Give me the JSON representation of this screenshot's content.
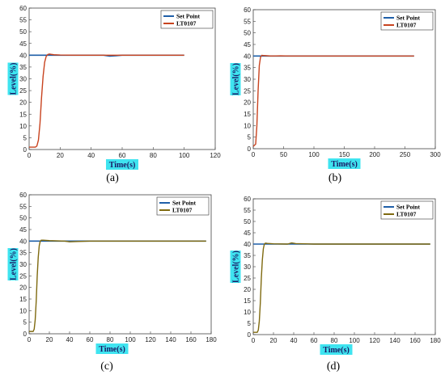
{
  "colors": {
    "setpoint": "#1f5fa8",
    "response_red": "#c8431f",
    "response_olive": "#7f6a10",
    "label_highlight": "#3fe4f0"
  },
  "chart_data": [
    {
      "type": "line",
      "caption": "(a)",
      "xlabel": "Time(s)",
      "ylabel": "Level(%)",
      "xlim": [
        0,
        120
      ],
      "ylim": [
        0,
        60
      ],
      "xticks": [
        0,
        20,
        40,
        60,
        80,
        100,
        120
      ],
      "yticks": [
        0,
        5,
        10,
        15,
        20,
        25,
        30,
        35,
        40,
        45,
        50,
        55,
        60
      ],
      "legend_position": "top-right",
      "series": [
        {
          "name": "Set Point",
          "color": "setpoint",
          "x": [
            0,
            48,
            52,
            56,
            60,
            100
          ],
          "y": [
            40,
            40,
            39.6,
            39.8,
            40,
            40
          ]
        },
        {
          "name": "LT0107",
          "color": "response_red",
          "x": [
            0,
            4,
            5,
            6,
            7,
            8,
            9,
            10,
            11,
            12,
            13,
            14,
            16,
            20,
            30,
            50,
            100
          ],
          "y": [
            1,
            1,
            1.5,
            4,
            11,
            22,
            31,
            37,
            39.5,
            40.3,
            40.5,
            40.4,
            40.2,
            40.1,
            40,
            40,
            40
          ]
        }
      ]
    },
    {
      "type": "line",
      "caption": "(b)",
      "xlabel": "Time(s)",
      "ylabel": "Level(%)",
      "xlim": [
        0,
        300
      ],
      "ylim": [
        0,
        60
      ],
      "xticks": [
        0,
        50,
        100,
        150,
        200,
        250,
        300
      ],
      "yticks": [
        0,
        5,
        10,
        15,
        20,
        25,
        30,
        35,
        40,
        45,
        50,
        55,
        60
      ],
      "legend_position": "top-right",
      "series": [
        {
          "name": "Set Point",
          "color": "setpoint",
          "x": [
            0,
            265
          ],
          "y": [
            40,
            40
          ]
        },
        {
          "name": "LT0107",
          "color": "response_red",
          "x": [
            0,
            4,
            6,
            8,
            10,
            12,
            14,
            18,
            30,
            45,
            60,
            265
          ],
          "y": [
            1,
            2,
            10,
            25,
            36,
            39.5,
            40.3,
            40.2,
            40,
            40.1,
            40,
            40
          ]
        }
      ]
    },
    {
      "type": "line",
      "caption": "(c)",
      "xlabel": "Time(s)",
      "ylabel": "Level(%)",
      "xlim": [
        0,
        180
      ],
      "ylim": [
        0,
        60
      ],
      "xticks": [
        0,
        20,
        40,
        60,
        80,
        100,
        120,
        140,
        160,
        180
      ],
      "yticks": [
        0,
        5,
        10,
        15,
        20,
        25,
        30,
        35,
        40,
        45,
        50,
        55,
        60
      ],
      "legend_position": "top-right",
      "series": [
        {
          "name": "Set Point",
          "color": "setpoint",
          "x": [
            0,
            175
          ],
          "y": [
            40,
            40
          ]
        },
        {
          "name": "LT0107",
          "color": "response_olive",
          "x": [
            0,
            4,
            5,
            6,
            7,
            8,
            9,
            10,
            11,
            12,
            14,
            20,
            35,
            40,
            45,
            60,
            175
          ],
          "y": [
            1,
            1,
            2,
            6,
            14,
            25,
            33,
            38,
            40,
            40.4,
            40.4,
            40.2,
            40,
            39.7,
            39.8,
            40,
            40
          ]
        }
      ]
    },
    {
      "type": "line",
      "caption": "(d)",
      "xlabel": "Time(s)",
      "ylabel": "Level(%)",
      "xlim": [
        0,
        180
      ],
      "ylim": [
        0,
        60
      ],
      "xticks": [
        0,
        20,
        40,
        60,
        80,
        100,
        120,
        140,
        160,
        180
      ],
      "yticks": [
        0,
        5,
        10,
        15,
        20,
        25,
        30,
        35,
        40,
        45,
        50,
        55,
        60
      ],
      "legend_position": "top-right",
      "series": [
        {
          "name": "Set Point",
          "color": "setpoint",
          "x": [
            0,
            175
          ],
          "y": [
            40,
            40
          ]
        },
        {
          "name": "LT0107",
          "color": "response_olive",
          "x": [
            0,
            4,
            5,
            6,
            7,
            8,
            9,
            10,
            11,
            12,
            14,
            20,
            34,
            38,
            42,
            60,
            175
          ],
          "y": [
            1,
            1,
            2,
            6,
            14,
            25,
            33,
            38,
            40,
            40.4,
            40.3,
            40.1,
            40,
            40.5,
            40.2,
            40,
            40
          ]
        }
      ]
    }
  ]
}
